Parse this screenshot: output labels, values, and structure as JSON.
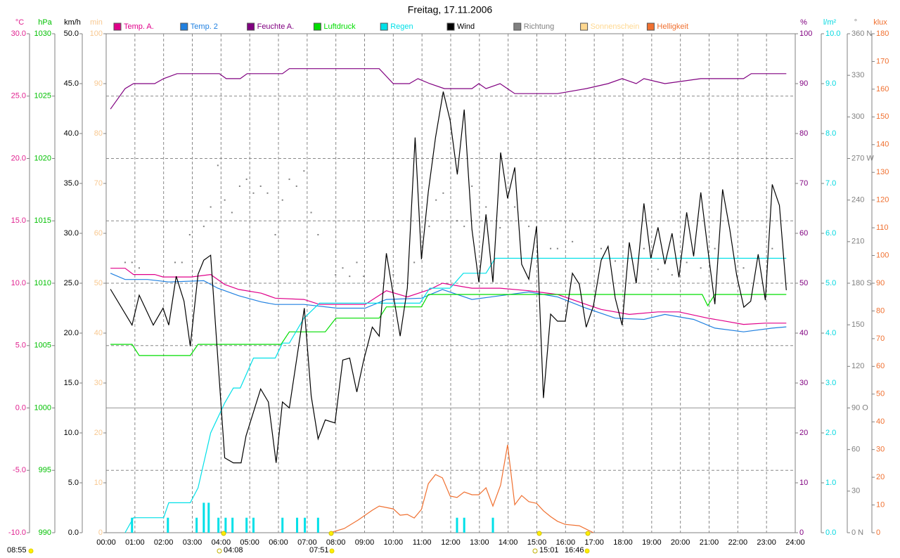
{
  "chart_data": {
    "type": "line",
    "title": "Freitag, 17.11.2006",
    "xlim": [
      0,
      24
    ],
    "xticks": [
      {
        "value": 0,
        "label": "00:00"
      },
      {
        "value": 1,
        "label": "01:00"
      },
      {
        "value": 2,
        "label": "02:00"
      },
      {
        "value": 3,
        "label": "03:00"
      },
      {
        "value": 4,
        "label": "04:00"
      },
      {
        "value": 5,
        "label": "05:00"
      },
      {
        "value": 6,
        "label": "06:00"
      },
      {
        "value": 7,
        "label": "07:00"
      },
      {
        "value": 8,
        "label": "08:00"
      },
      {
        "value": 9,
        "label": "09:00"
      },
      {
        "value": 10,
        "label": "10:00"
      },
      {
        "value": 11,
        "label": "11:00"
      },
      {
        "value": 12,
        "label": "12:00"
      },
      {
        "value": 13,
        "label": "13:00"
      },
      {
        "value": 14,
        "label": "14:00"
      },
      {
        "value": 15,
        "label": "15:00"
      },
      {
        "value": 16,
        "label": "16:00"
      },
      {
        "value": 17,
        "label": "17:00"
      },
      {
        "value": 18,
        "label": "18:00"
      },
      {
        "value": 19,
        "label": "19:00"
      },
      {
        "value": 20,
        "label": "20:00"
      },
      {
        "value": 21,
        "label": "21:00"
      },
      {
        "value": 22,
        "label": "22:00"
      },
      {
        "value": 23,
        "label": "23:00"
      },
      {
        "value": 24,
        "label": "24:00"
      }
    ],
    "grid": true,
    "axes": [
      {
        "label": "°C",
        "color": "#e0208f",
        "ylim": [
          -10,
          30
        ],
        "yticks": [
          {
            "value": -10,
            "label": "-10.0"
          },
          {
            "value": -5,
            "label": "-5.0"
          },
          {
            "value": 0,
            "label": "0.0"
          },
          {
            "value": 5,
            "label": "5.0"
          },
          {
            "value": 10,
            "label": "10.0"
          },
          {
            "value": 15,
            "label": "15.0"
          },
          {
            "value": 20,
            "label": "20.0"
          },
          {
            "value": 25,
            "label": "25.0"
          },
          {
            "value": 30,
            "label": "30.0"
          }
        ]
      },
      {
        "label": "hPa",
        "color": "#00c000",
        "ylim": [
          990,
          1030
        ],
        "yticks": [
          990,
          995,
          1000,
          1005,
          1010,
          1015,
          1020,
          1025,
          1030
        ]
      },
      {
        "label": "km/h",
        "color": "#000000",
        "ylim": [
          0,
          50
        ],
        "yticks": [
          {
            "value": 0,
            "label": "0.0"
          },
          {
            "value": 5,
            "label": "5.0"
          },
          {
            "value": 10,
            "label": "10.0"
          },
          {
            "value": 15,
            "label": "15.0"
          },
          {
            "value": 20,
            "label": "20.0"
          },
          {
            "value": 25,
            "label": "25.0"
          },
          {
            "value": 30,
            "label": "30.0"
          },
          {
            "value": 35,
            "label": "35.0"
          },
          {
            "value": 40,
            "label": "40.0"
          },
          {
            "value": 45,
            "label": "45.0"
          },
          {
            "value": 50,
            "label": "50.0"
          }
        ]
      },
      {
        "label": "min",
        "color": "#f8c890",
        "ylim": [
          0,
          100
        ],
        "yticks": [
          0,
          10,
          20,
          30,
          40,
          50,
          60,
          70,
          80,
          90,
          100
        ]
      },
      {
        "label": "%",
        "color": "#800080",
        "ylim": [
          0,
          100
        ],
        "yticks": [
          0,
          10,
          20,
          30,
          40,
          50,
          60,
          70,
          80,
          90,
          100
        ]
      },
      {
        "label": "l/m²",
        "color": "#00d8e0",
        "ylim": [
          0,
          10
        ],
        "yticks": [
          {
            "value": 0,
            "label": "0.0"
          },
          {
            "value": 1,
            "label": "1.0"
          },
          {
            "value": 2,
            "label": "2.0"
          },
          {
            "value": 3,
            "label": "3.0"
          },
          {
            "value": 4,
            "label": "4.0"
          },
          {
            "value": 5,
            "label": "5.0"
          },
          {
            "value": 6,
            "label": "6.0"
          },
          {
            "value": 7,
            "label": "7.0"
          },
          {
            "value": 8,
            "label": "8.0"
          },
          {
            "value": 9,
            "label": "9.0"
          },
          {
            "value": 10,
            "label": "10.0"
          }
        ]
      },
      {
        "label": "°",
        "color": "#808080",
        "ylim": [
          0,
          360
        ],
        "yticks": [
          {
            "value": 0,
            "label": "0 N"
          },
          30,
          60,
          {
            "value": 90,
            "label": "90 O"
          },
          120,
          150,
          {
            "value": 180,
            "label": "180 S"
          },
          210,
          240,
          {
            "value": 270,
            "label": "270 W"
          },
          300,
          330,
          {
            "value": 360,
            "label": "360 N"
          }
        ]
      },
      {
        "label": "klux",
        "color": "#f07030",
        "ylim": [
          0,
          180
        ],
        "yticks": [
          0,
          10,
          20,
          30,
          40,
          50,
          60,
          70,
          80,
          90,
          100,
          110,
          120,
          130,
          140,
          150,
          160,
          170,
          180
        ]
      }
    ],
    "series": [
      {
        "name": "Temp. A.",
        "color": "#e0008a",
        "axis": 0,
        "x": [
          0.15,
          0.66,
          0.95,
          1.69,
          1.98,
          2.96,
          3.64,
          4.13,
          4.62,
          5.4,
          5.89,
          6.89,
          7.43,
          9.02,
          9.76,
          10.49,
          11.27,
          11.71,
          12.74,
          13.72,
          14.72,
          15.72,
          16.72,
          17.24,
          18.22,
          19.22,
          19.95,
          20.95,
          21.47,
          22.2,
          22.96,
          23.69
        ],
        "values": [
          11.2,
          11.2,
          10.7,
          10.7,
          10.5,
          10.5,
          10.7,
          9.9,
          9.5,
          9.2,
          8.8,
          8.7,
          8.3,
          8.3,
          9.4,
          8.9,
          9.5,
          10.0,
          9.6,
          9.6,
          9.4,
          9.1,
          8.3,
          7.9,
          7.5,
          7.7,
          7.7,
          7.2,
          7.0,
          6.7,
          6.8,
          6.8
        ]
      },
      {
        "name": "Temp. 2",
        "color": "#2080e0",
        "axis": 0,
        "x": [
          0.15,
          0.66,
          1.44,
          2.18,
          3.4,
          3.89,
          4.62,
          5.4,
          5.89,
          6.89,
          8.04,
          9.02,
          9.76,
          10.98,
          11.71,
          12.74,
          13.72,
          14.72,
          15.72,
          16.72,
          17.73,
          18.73,
          19.46,
          20.46,
          21.2,
          22.2,
          23.2,
          23.69
        ],
        "values": [
          10.8,
          10.3,
          10.3,
          10.1,
          10.2,
          9.6,
          9.0,
          8.5,
          8.3,
          8.3,
          8.0,
          8.0,
          8.7,
          8.8,
          9.5,
          8.7,
          9.0,
          9.3,
          8.9,
          8.0,
          7.2,
          7.1,
          7.5,
          7.1,
          6.4,
          6.1,
          6.4,
          6.5
        ]
      },
      {
        "name": "Feuchte A.",
        "color": "#800080",
        "axis": 4,
        "x": [
          0.15,
          0.66,
          0.95,
          1.69,
          2.0,
          2.47,
          3.94,
          4.18,
          4.67,
          4.91,
          6.14,
          6.38,
          9.51,
          10.0,
          10.56,
          10.86,
          11.27,
          11.78,
          12.74,
          12.98,
          13.23,
          13.72,
          14.23,
          15.72,
          16.72,
          17.48,
          17.97,
          18.46,
          18.73,
          19.46,
          20.71,
          22.2,
          22.47,
          23.69
        ],
        "values": [
          84.9,
          89,
          90,
          90,
          91,
          92,
          92,
          91,
          91,
          92,
          92,
          93,
          93,
          90,
          90,
          91,
          90,
          89,
          89,
          90,
          89,
          90,
          88,
          88,
          89,
          90,
          91,
          90,
          91,
          90,
          91,
          91,
          92,
          92
        ]
      },
      {
        "name": "Luftdruck",
        "color": "#00dd00",
        "axis": 1,
        "x": [
          0.15,
          0.9,
          1.15,
          2.93,
          3.2,
          6.09,
          6.38,
          7.63,
          8.0,
          9.51,
          9.76,
          10.98,
          11.22,
          20.76,
          20.95,
          21.2,
          23.69
        ],
        "values": [
          1005.1,
          1005.1,
          1004.2,
          1004.2,
          1005.1,
          1005.1,
          1006.1,
          1006.1,
          1007.2,
          1007.2,
          1008.1,
          1008.1,
          1009.1,
          1009.1,
          1008.2,
          1009.1,
          1009.1
        ]
      },
      {
        "name": "Regen",
        "color": "#00e0e8",
        "axis": 5,
        "x": [
          0.66,
          0.95,
          2.0,
          2.18,
          2.93,
          3.2,
          3.64,
          4.13,
          4.43,
          4.67,
          5.13,
          5.89,
          6.14,
          6.38,
          6.89,
          7.43,
          10.93,
          11.27,
          11.98,
          12.44,
          13.23,
          13.55,
          23.69
        ],
        "values": [
          0,
          0.3,
          0.3,
          0.6,
          0.6,
          0.9,
          2.0,
          2.6,
          2.9,
          2.9,
          3.5,
          3.5,
          3.8,
          3.8,
          4.3,
          4.6,
          4.6,
          4.9,
          4.9,
          5.2,
          5.2,
          5.5,
          5.5
        ],
        "bar_x": [
          0.9,
          2.15,
          3.15,
          3.4,
          3.57,
          3.91,
          4.16,
          4.4,
          4.89,
          5.13,
          6.14,
          6.65,
          6.92,
          7.38,
          12.22,
          12.47,
          13.47
        ],
        "bar_values": [
          0.3,
          0.3,
          0.3,
          0.6,
          0.6,
          0.3,
          0.3,
          0.3,
          0.3,
          0.3,
          0.3,
          0.3,
          0.3,
          0.3,
          0.3,
          0.3,
          0.3
        ]
      },
      {
        "name": "Wind",
        "color": "#000000",
        "axis": 2,
        "x": [
          0.15,
          0.9,
          1.15,
          1.64,
          1.98,
          2.18,
          2.44,
          2.71,
          2.93,
          3.2,
          3.4,
          3.64,
          4.13,
          4.43,
          4.7,
          4.87,
          5.38,
          5.65,
          5.92,
          6.14,
          6.38,
          6.9,
          7.14,
          7.38,
          7.63,
          7.97,
          8.24,
          8.48,
          8.73,
          8.97,
          9.27,
          9.51,
          9.76,
          10.24,
          10.49,
          10.76,
          10.98,
          11.22,
          11.47,
          11.74,
          11.98,
          12.23,
          12.47,
          12.74,
          12.98,
          13.23,
          13.47,
          13.74,
          13.98,
          14.23,
          14.47,
          14.72,
          14.99,
          15.23,
          15.48,
          15.72,
          15.99,
          16.24,
          16.48,
          16.72,
          16.97,
          17.24,
          17.48,
          17.73,
          17.97,
          18.22,
          18.46,
          18.73,
          18.97,
          19.22,
          19.46,
          19.71,
          19.95,
          20.22,
          20.46,
          20.71,
          20.95,
          21.2,
          21.47,
          21.72,
          21.96,
          22.21,
          22.45,
          22.71,
          22.96,
          23.2,
          23.45,
          23.69
        ],
        "values": [
          24.4,
          20.8,
          23.8,
          20.8,
          22.5,
          20.8,
          25.7,
          23.2,
          18.7,
          25.9,
          27.3,
          27.8,
          7.5,
          7.0,
          7.0,
          9.7,
          14.4,
          13.1,
          7.0,
          13.1,
          12.5,
          22.5,
          13.7,
          9.4,
          11.3,
          11.0,
          17.3,
          17.5,
          14.1,
          17.3,
          20.6,
          19.7,
          28.0,
          19.7,
          24.5,
          39.6,
          27.4,
          34.2,
          39.6,
          44.2,
          41.3,
          35.9,
          42.4,
          30.4,
          25.1,
          31.9,
          25.1,
          38.1,
          33.5,
          36.6,
          26.9,
          25.4,
          30.7,
          13.5,
          21.9,
          21.2,
          21.2,
          26.0,
          24.9,
          20.6,
          22.7,
          27.3,
          28.7,
          23.5,
          20.8,
          29.1,
          25.0,
          33.0,
          27.5,
          30.6,
          26.9,
          30.0,
          25.6,
          32.1,
          27.7,
          34.1,
          28.5,
          22.9,
          34.4,
          30.4,
          25.8,
          22.6,
          23.2,
          27.9,
          23.3,
          34.9,
          32.8,
          24.3
        ]
      },
      {
        "name": "Richtung",
        "color": "#808080",
        "axis": 6,
        "style": "dots",
        "x": [
          0.66,
          0.9,
          1.15,
          2.4,
          2.64,
          2.91,
          3.4,
          3.64,
          3.89,
          4.13,
          4.38,
          4.65,
          4.89,
          5.13,
          5.38,
          5.62,
          5.89,
          6.14,
          6.38,
          6.63,
          6.89,
          7.14,
          7.38,
          7.99,
          8.24,
          8.48,
          8.73,
          8.97,
          10.0,
          10.73,
          11.25,
          11.49,
          11.74,
          12.22,
          12.47,
          12.74,
          13.23,
          13.72,
          14.23,
          14.72,
          15.48,
          15.72,
          16.24,
          17.24,
          17.73,
          18.73,
          19.22,
          19.71,
          20.22,
          20.71,
          21.2,
          22.2,
          23.2
        ],
        "values": [
          195,
          195,
          191,
          195,
          195,
          215,
          221,
          235,
          265,
          240,
          231,
          250,
          255,
          245,
          250,
          245,
          215,
          240,
          255,
          250,
          261,
          231,
          215,
          186,
          191,
          185,
          195,
          185,
          186,
          195,
          221,
          240,
          245,
          225,
          221,
          250,
          235,
          220,
          235,
          221,
          205,
          205,
          210,
          205,
          196,
          205,
          190,
          186,
          195,
          191,
          205,
          191,
          205
        ]
      },
      {
        "name": "Sonnenschein",
        "color": "#ffd890",
        "axis": 3
      },
      {
        "name": "Helligkeit",
        "color": "#f07030",
        "axis": 7,
        "x": [
          7.8,
          8.29,
          8.78,
          9.27,
          9.51,
          10.0,
          10.24,
          10.49,
          10.73,
          10.98,
          11.22,
          11.47,
          11.71,
          11.98,
          12.22,
          12.47,
          12.74,
          12.98,
          13.23,
          13.47,
          13.74,
          13.98,
          14.23,
          14.47,
          14.72,
          14.99,
          15.23,
          15.48,
          15.72,
          15.99,
          16.48,
          16.72,
          16.97
        ],
        "values": [
          0,
          1.5,
          4.6,
          8.1,
          9.6,
          8.6,
          6.3,
          6.6,
          5.3,
          8.4,
          17.7,
          21.0,
          19.8,
          13.2,
          12.7,
          14.7,
          13.7,
          13.7,
          16.2,
          9.6,
          17.2,
          31.7,
          10.1,
          13.4,
          11.2,
          10.6,
          7.9,
          5.8,
          4.1,
          3.0,
          2.5,
          1.3,
          0
        ]
      }
    ],
    "annotations": [
      "08:55",
      "04:08",
      "07:51",
      "15:01",
      "16:46"
    ]
  }
}
